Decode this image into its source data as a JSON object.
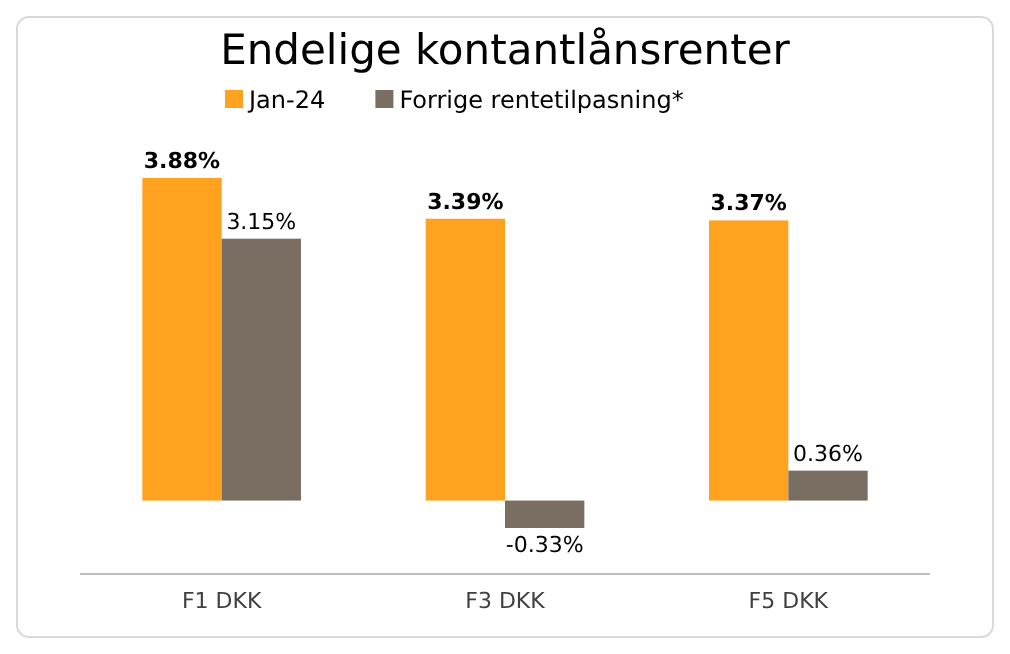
{
  "chart_data": {
    "type": "bar",
    "title": "Endelige kontantlånsrenter",
    "categories": [
      "F1 DKK",
      "F3 DKK",
      "F5 DKK"
    ],
    "legend": "top",
    "series": [
      {
        "name": "Jan-24",
        "color": "#ffa21f",
        "values": [
          3.88,
          3.39,
          3.37
        ],
        "value_labels": [
          "3.88%",
          "3.39%",
          "3.37%"
        ]
      },
      {
        "name": "Forrige rentetilpasning*",
        "color": "#7a6e62",
        "values": [
          3.15,
          -0.33,
          0.36
        ],
        "value_labels": [
          "3.15%",
          "-0.33%",
          "0.36%"
        ]
      }
    ]
  }
}
